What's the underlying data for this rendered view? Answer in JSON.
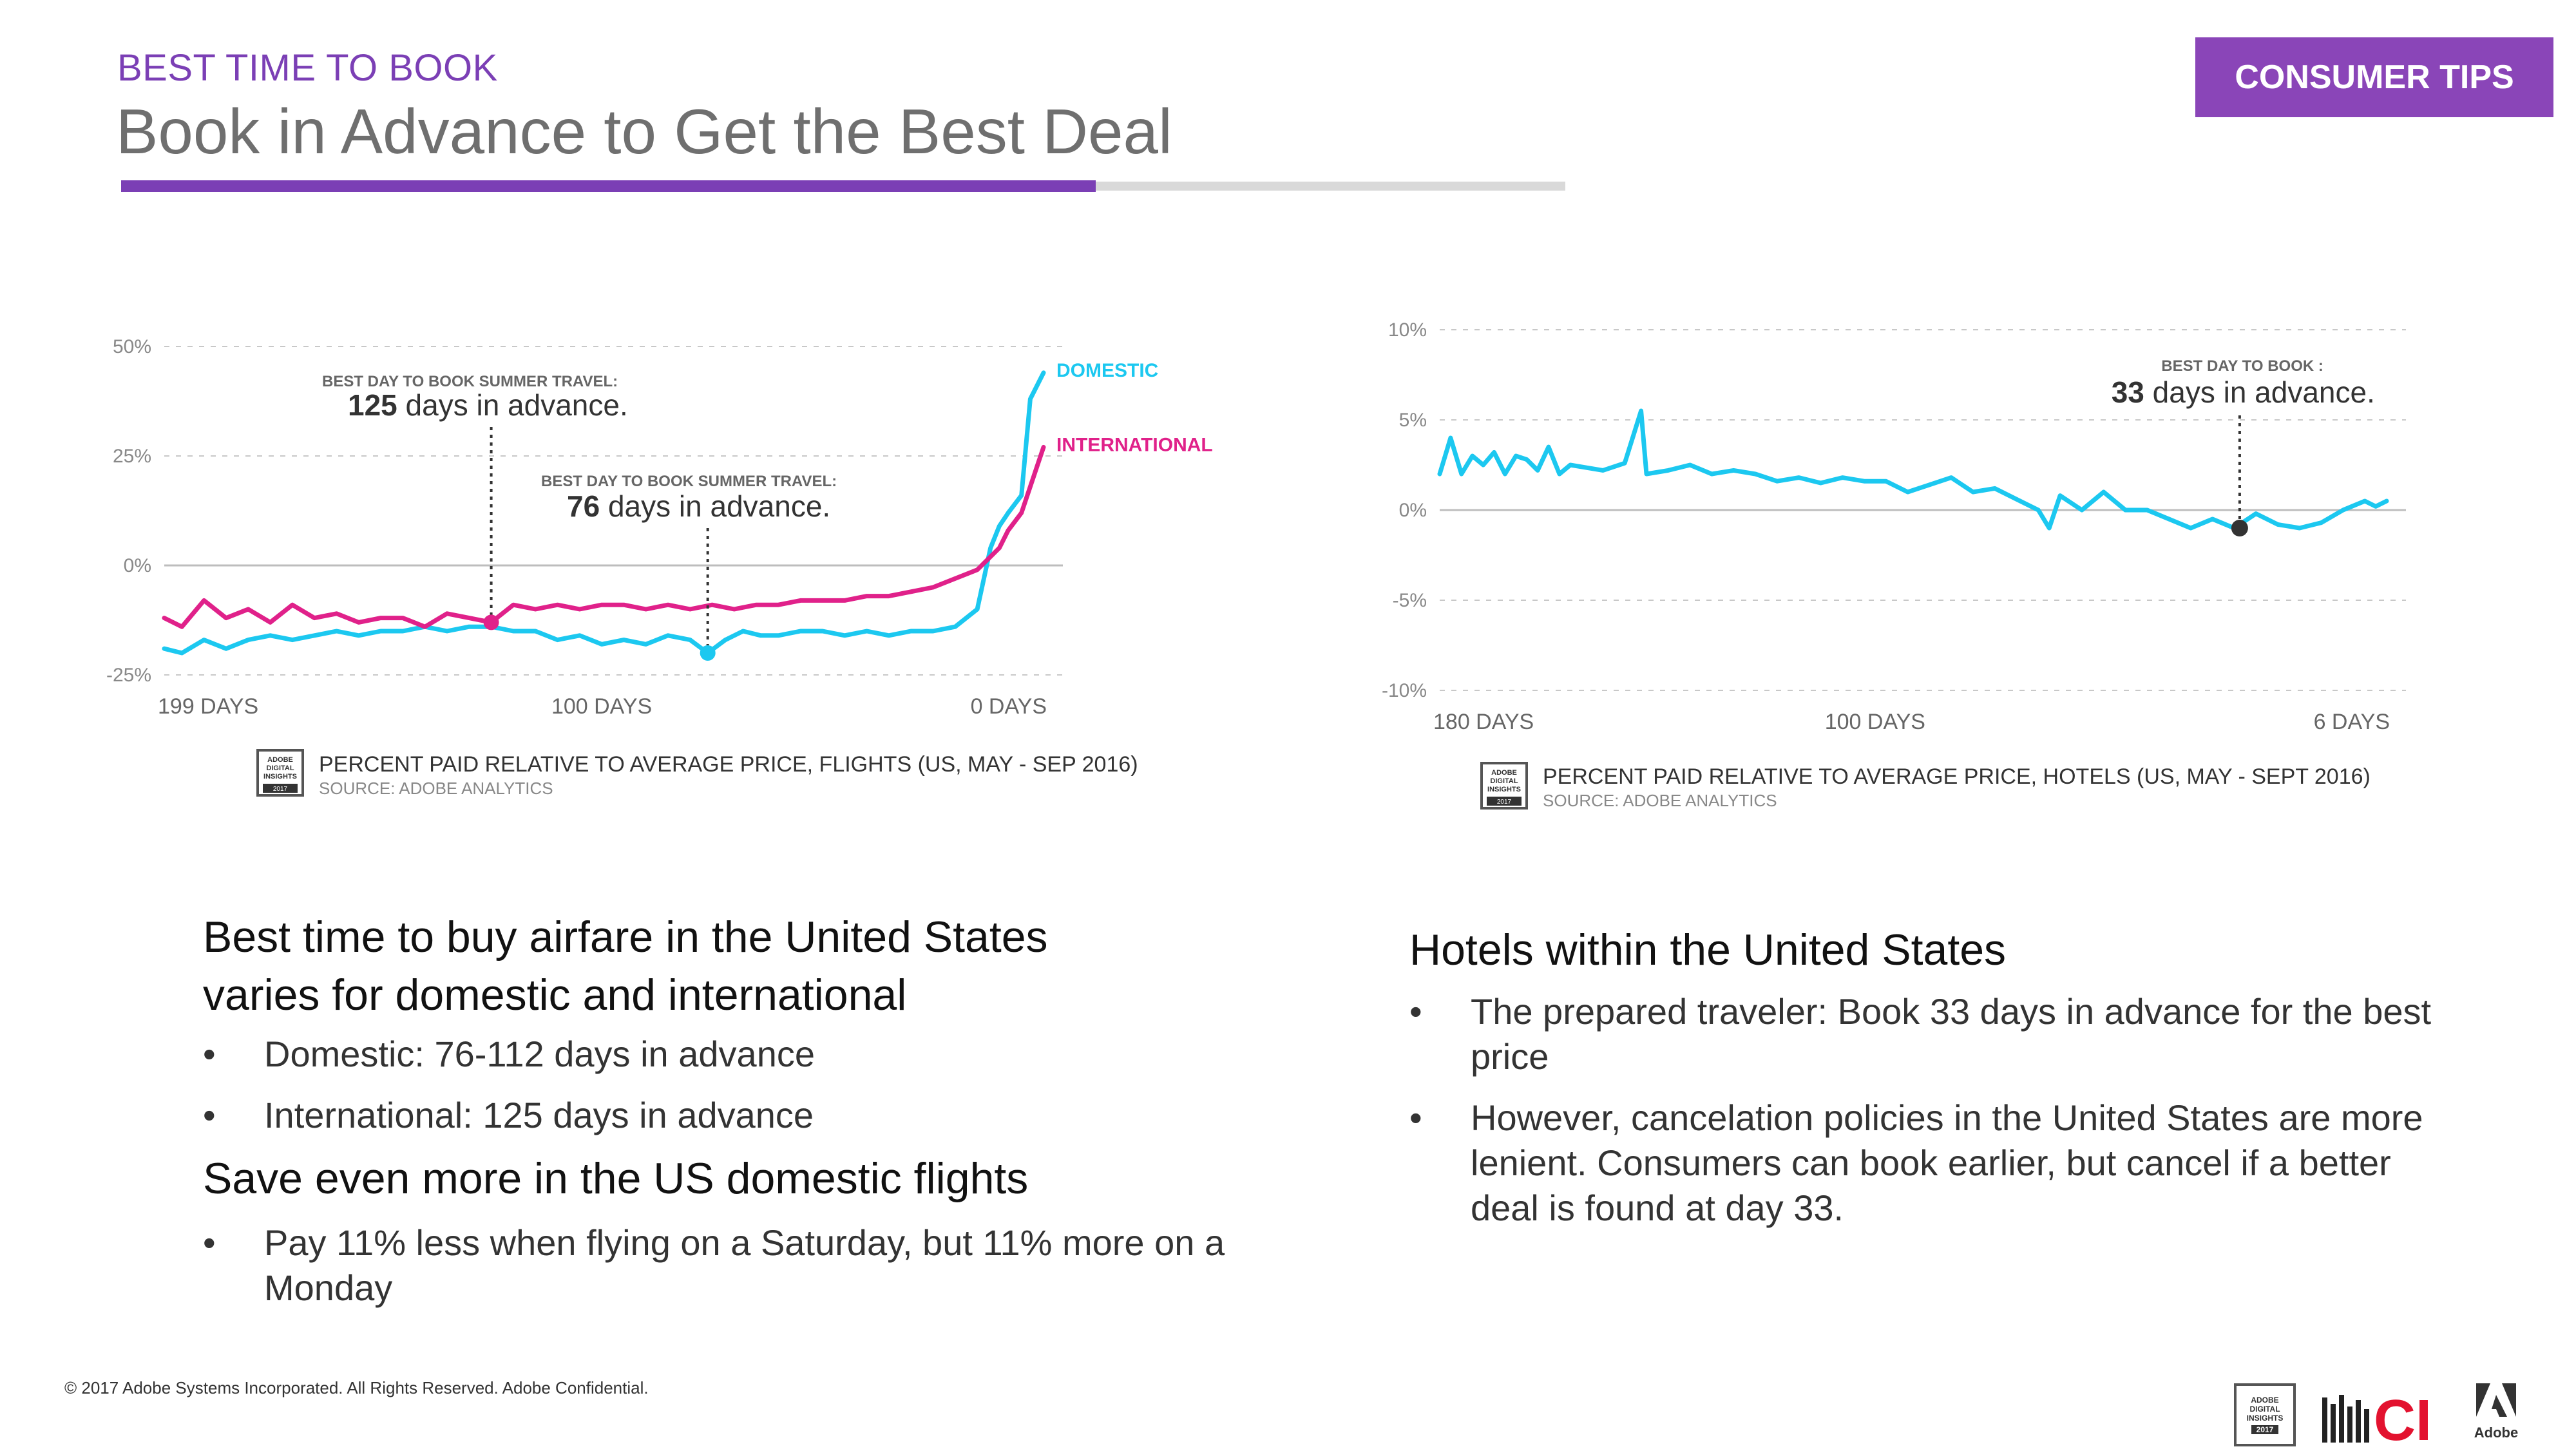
{
  "header": {
    "kicker": "BEST TIME TO BOOK",
    "title": "Book in Advance to Get the Best Deal",
    "badge": "CONSUMER TIPS",
    "progress": 0.675,
    "accent": "#7b3fb5",
    "badge_color": "#8a45b8"
  },
  "chart_data": [
    {
      "type": "line",
      "caption": "PERCENT PAID RELATIVE TO AVERAGE PRICE, FLIGHTS (US, MAY - SEP 2016)",
      "source": "SOURCE: ADOBE ANALYTICS",
      "x_direction": "days in advance, decreasing left to right",
      "xlim": [
        199,
        0
      ],
      "ylim": [
        -25,
        50
      ],
      "yticks": [
        "50%",
        "25%",
        "0%",
        "-25%"
      ],
      "xticks": [
        "199 DAYS",
        "100 DAYS",
        "0 DAYS"
      ],
      "grid": "dashed horizontal",
      "series": [
        {
          "name": "DOMESTIC",
          "color": "#1cc8f0",
          "points": [
            [
              199,
              -19
            ],
            [
              195,
              -20
            ],
            [
              190,
              -17
            ],
            [
              185,
              -19
            ],
            [
              180,
              -17
            ],
            [
              175,
              -16
            ],
            [
              170,
              -17
            ],
            [
              165,
              -16
            ],
            [
              160,
              -15
            ],
            [
              155,
              -16
            ],
            [
              150,
              -15
            ],
            [
              145,
              -15
            ],
            [
              140,
              -14
            ],
            [
              135,
              -15
            ],
            [
              130,
              -14
            ],
            [
              125,
              -14
            ],
            [
              120,
              -15
            ],
            [
              115,
              -15
            ],
            [
              110,
              -17
            ],
            [
              105,
              -16
            ],
            [
              100,
              -18
            ],
            [
              95,
              -17
            ],
            [
              90,
              -18
            ],
            [
              85,
              -16
            ],
            [
              80,
              -17
            ],
            [
              76,
              -20
            ],
            [
              72,
              -17
            ],
            [
              68,
              -15
            ],
            [
              64,
              -16
            ],
            [
              60,
              -16
            ],
            [
              55,
              -15
            ],
            [
              50,
              -15
            ],
            [
              45,
              -16
            ],
            [
              40,
              -15
            ],
            [
              35,
              -16
            ],
            [
              30,
              -15
            ],
            [
              25,
              -15
            ],
            [
              20,
              -14
            ],
            [
              15,
              -10
            ],
            [
              12,
              4
            ],
            [
              10,
              9
            ],
            [
              8,
              12
            ],
            [
              5,
              16
            ],
            [
              3,
              38
            ],
            [
              1,
              42
            ],
            [
              0,
              44
            ]
          ]
        },
        {
          "name": "INTERNATIONAL",
          "color": "#e0218a",
          "points": [
            [
              199,
              -12
            ],
            [
              195,
              -14
            ],
            [
              190,
              -8
            ],
            [
              185,
              -12
            ],
            [
              180,
              -10
            ],
            [
              175,
              -13
            ],
            [
              170,
              -9
            ],
            [
              165,
              -12
            ],
            [
              160,
              -11
            ],
            [
              155,
              -13
            ],
            [
              150,
              -12
            ],
            [
              145,
              -12
            ],
            [
              140,
              -14
            ],
            [
              135,
              -11
            ],
            [
              130,
              -12
            ],
            [
              125,
              -13
            ],
            [
              120,
              -9
            ],
            [
              115,
              -10
            ],
            [
              110,
              -9
            ],
            [
              105,
              -10
            ],
            [
              100,
              -9
            ],
            [
              95,
              -9
            ],
            [
              90,
              -10
            ],
            [
              85,
              -9
            ],
            [
              80,
              -10
            ],
            [
              75,
              -9
            ],
            [
              70,
              -10
            ],
            [
              65,
              -9
            ],
            [
              60,
              -9
            ],
            [
              55,
              -8
            ],
            [
              50,
              -8
            ],
            [
              45,
              -8
            ],
            [
              40,
              -7
            ],
            [
              35,
              -7
            ],
            [
              30,
              -6
            ],
            [
              25,
              -5
            ],
            [
              20,
              -3
            ],
            [
              15,
              -1
            ],
            [
              12,
              2
            ],
            [
              10,
              4
            ],
            [
              8,
              8
            ],
            [
              5,
              12
            ],
            [
              3,
              18
            ],
            [
              1,
              24
            ],
            [
              0,
              27
            ]
          ]
        }
      ],
      "annotations": [
        {
          "label": "BEST DAY TO BOOK SUMMER TRAVEL:",
          "value": "125",
          "suffix": "days in advance.",
          "x": 125,
          "y": -13,
          "series": "INTERNATIONAL"
        },
        {
          "label": "BEST DAY TO BOOK SUMMER TRAVEL:",
          "value": "76",
          "suffix": "days in advance.",
          "x": 76,
          "y": -20,
          "series": "DOMESTIC"
        }
      ]
    },
    {
      "type": "line",
      "caption": "PERCENT PAID RELATIVE TO AVERAGE PRICE, HOTELS (US, MAY - SEPT 2016)",
      "source": "SOURCE: ADOBE ANALYTICS",
      "x_direction": "days in advance, decreasing left to right",
      "xlim": [
        180,
        6
      ],
      "ylim": [
        -10,
        10
      ],
      "yticks": [
        "10%",
        "5%",
        "0%",
        "-5%",
        "-10%"
      ],
      "xticks": [
        "180 DAYS",
        "100 DAYS",
        "6 DAYS"
      ],
      "grid": "dashed horizontal",
      "series": [
        {
          "color": "#1cc8f0",
          "points": [
            [
              180,
              2
            ],
            [
              178,
              4
            ],
            [
              176,
              2
            ],
            [
              174,
              3
            ],
            [
              172,
              2.5
            ],
            [
              170,
              3.2
            ],
            [
              168,
              2
            ],
            [
              166,
              3
            ],
            [
              164,
              2.8
            ],
            [
              162,
              2.2
            ],
            [
              160,
              3.5
            ],
            [
              158,
              2
            ],
            [
              156,
              2.5
            ],
            [
              154,
              2.4
            ],
            [
              150,
              2.2
            ],
            [
              146,
              2.6
            ],
            [
              143,
              5.5
            ],
            [
              142,
              2
            ],
            [
              138,
              2.2
            ],
            [
              134,
              2.5
            ],
            [
              130,
              2
            ],
            [
              126,
              2.2
            ],
            [
              122,
              2
            ],
            [
              118,
              1.6
            ],
            [
              114,
              1.8
            ],
            [
              110,
              1.5
            ],
            [
              106,
              1.8
            ],
            [
              102,
              1.6
            ],
            [
              98,
              1.6
            ],
            [
              94,
              1
            ],
            [
              90,
              1.4
            ],
            [
              86,
              1.8
            ],
            [
              82,
              1
            ],
            [
              78,
              1.2
            ],
            [
              74,
              0.6
            ],
            [
              70,
              0
            ],
            [
              68,
              -1
            ],
            [
              66,
              0.8
            ],
            [
              62,
              0
            ],
            [
              58,
              1
            ],
            [
              54,
              0
            ],
            [
              50,
              0
            ],
            [
              46,
              -0.5
            ],
            [
              42,
              -1
            ],
            [
              38,
              -0.5
            ],
            [
              34,
              -1
            ],
            [
              30,
              -0.2
            ],
            [
              26,
              -0.8
            ],
            [
              22,
              -1
            ],
            [
              18,
              -0.7
            ],
            [
              14,
              0
            ],
            [
              10,
              0.5
            ],
            [
              8,
              0.2
            ],
            [
              6,
              0.5
            ]
          ]
        }
      ],
      "annotations": [
        {
          "label": "BEST DAY TO BOOK :",
          "value": "33",
          "suffix": "days in advance.",
          "x": 33,
          "y": -1
        }
      ]
    }
  ],
  "left_text": {
    "heading1_line1": "Best time to buy airfare in the United States",
    "heading1_line2": "varies for domestic and international",
    "bullets1": [
      "Domestic: 76-112 days in advance",
      "International: 125 days in advance"
    ],
    "heading2": "Save even more in the US domestic flights",
    "bullets2_line1": "Pay 11% less when flying on a Saturday, but  11% more on a",
    "bullets2_line2": "Monday"
  },
  "right_text": {
    "heading": "Hotels within the United States",
    "b1_line1": "The prepared traveler: Book 33 days in advance for the best",
    "b1_line2": "price",
    "b2_line1": "However, cancelation policies in the United States are more",
    "b2_line2": "lenient. Consumers can book earlier, but cancel if a better",
    "b2_line3": "deal is found at day 33."
  },
  "bullet_glyph": "•",
  "footer": {
    "copyright": "© 2017 Adobe Systems Incorporated.  All Rights Reserved.  Adobe Confidential.",
    "logo_adi_line1": "ADOBE",
    "logo_adi_line2": "DIGITAL",
    "logo_adi_line3": "INSIGHTS",
    "logo_adi_year": "2017",
    "logo_ci": "CI",
    "logo_adobe": "Adobe"
  },
  "badge_icon": {
    "line1": "ADOBE",
    "line2": "DIGITAL",
    "line3": "INSIGHTS",
    "year": "2017"
  }
}
